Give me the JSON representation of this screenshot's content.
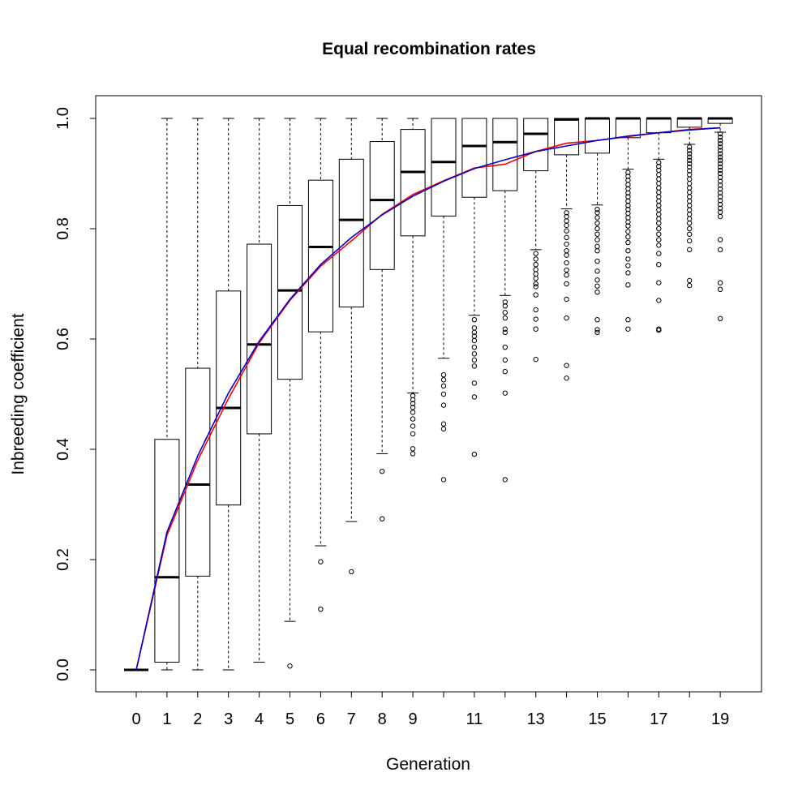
{
  "chart_data": {
    "type": "box",
    "title": "Equal recombination rates",
    "xlabel": "Generation",
    "ylabel": "Inbreeding coefficient",
    "ylim": [
      -0.04,
      1.04
    ],
    "y_ticks": [
      0.0,
      0.2,
      0.4,
      0.6,
      0.8,
      1.0
    ],
    "y_tick_labels": [
      "0.0",
      "0.2",
      "0.4",
      "0.6",
      "0.8",
      "1.0"
    ],
    "categories": [
      "0",
      "1",
      "2",
      "3",
      "4",
      "5",
      "6",
      "7",
      "8",
      "9",
      "10",
      "11",
      "12",
      "13",
      "14",
      "15",
      "16",
      "17",
      "18",
      "19"
    ],
    "x_tick_labels": [
      "0",
      "1",
      "2",
      "3",
      "4",
      "5",
      "6",
      "7",
      "8",
      "9",
      "",
      "11",
      "",
      "13",
      "",
      "15",
      "",
      "17",
      "",
      "19"
    ],
    "grid": false,
    "boxes": [
      {
        "gen": 0,
        "low": 0.0,
        "q1": 0.0,
        "median": 0.0,
        "q3": 0.0,
        "high": 0.0,
        "outliers": []
      },
      {
        "gen": 1,
        "low": 0.0,
        "q1": 0.014,
        "median": 0.168,
        "q3": 0.418,
        "high": 1.0,
        "outliers": []
      },
      {
        "gen": 2,
        "low": 0.0,
        "q1": 0.17,
        "median": 0.336,
        "q3": 0.547,
        "high": 1.0,
        "outliers": []
      },
      {
        "gen": 3,
        "low": 0.0,
        "q1": 0.299,
        "median": 0.475,
        "q3": 0.687,
        "high": 1.0,
        "outliers": []
      },
      {
        "gen": 4,
        "low": 0.014,
        "q1": 0.428,
        "median": 0.59,
        "q3": 0.772,
        "high": 1.0,
        "outliers": []
      },
      {
        "gen": 5,
        "low": 0.088,
        "q1": 0.527,
        "median": 0.688,
        "q3": 0.842,
        "high": 1.0,
        "outliers": [
          0.007
        ]
      },
      {
        "gen": 6,
        "low": 0.225,
        "q1": 0.613,
        "median": 0.767,
        "q3": 0.888,
        "high": 1.0,
        "outliers": [
          0.196,
          0.11
        ]
      },
      {
        "gen": 7,
        "low": 0.269,
        "q1": 0.658,
        "median": 0.816,
        "q3": 0.926,
        "high": 1.0,
        "outliers": [
          0.178
        ]
      },
      {
        "gen": 8,
        "low": 0.392,
        "q1": 0.726,
        "median": 0.852,
        "q3": 0.958,
        "high": 1.0,
        "outliers": [
          0.36,
          0.274
        ]
      },
      {
        "gen": 9,
        "low": 0.502,
        "q1": 0.787,
        "median": 0.903,
        "q3": 0.98,
        "high": 1.0,
        "outliers": [
          0.497,
          0.49,
          0.483,
          0.476,
          0.467,
          0.455,
          0.442,
          0.428,
          0.401,
          0.392
        ]
      },
      {
        "gen": 10,
        "low": 0.565,
        "q1": 0.823,
        "median": 0.921,
        "q3": 1.0,
        "high": 1.0,
        "outliers": [
          0.535,
          0.526,
          0.515,
          0.5,
          0.48,
          0.446,
          0.437,
          0.345
        ]
      },
      {
        "gen": 11,
        "low": 0.643,
        "q1": 0.857,
        "median": 0.95,
        "q3": 1.0,
        "high": 1.0,
        "outliers": [
          0.635,
          0.62,
          0.612,
          0.605,
          0.597,
          0.585,
          0.573,
          0.562,
          0.551,
          0.52,
          0.495,
          0.391
        ]
      },
      {
        "gen": 12,
        "low": 0.679,
        "q1": 0.869,
        "median": 0.957,
        "q3": 1.0,
        "high": 1.0,
        "outliers": [
          0.667,
          0.66,
          0.648,
          0.638,
          0.618,
          0.612,
          0.585,
          0.562,
          0.541,
          0.502,
          0.345
        ]
      },
      {
        "gen": 13,
        "low": 0.762,
        "q1": 0.905,
        "median": 0.972,
        "q3": 1.0,
        "high": 1.0,
        "outliers": [
          0.755,
          0.745,
          0.735,
          0.726,
          0.718,
          0.71,
          0.7,
          0.695,
          0.68,
          0.653,
          0.636,
          0.618,
          0.563
        ]
      },
      {
        "gen": 14,
        "low": 0.836,
        "q1": 0.934,
        "median": 0.998,
        "q3": 1.0,
        "high": 1.0,
        "outliers": [
          0.829,
          0.822,
          0.814,
          0.806,
          0.796,
          0.784,
          0.772,
          0.76,
          0.752,
          0.738,
          0.725,
          0.716,
          0.7,
          0.672,
          0.638,
          0.552,
          0.529
        ]
      },
      {
        "gen": 15,
        "low": 0.843,
        "q1": 0.937,
        "median": 1.0,
        "q3": 1.0,
        "high": 1.0,
        "outliers": [
          0.835,
          0.829,
          0.82,
          0.81,
          0.8,
          0.79,
          0.78,
          0.768,
          0.76,
          0.741,
          0.723,
          0.707,
          0.696,
          0.685,
          0.635,
          0.617,
          0.612
        ]
      },
      {
        "gen": 16,
        "low": 0.908,
        "q1": 0.965,
        "median": 1.0,
        "q3": 1.0,
        "high": 1.0,
        "outliers": [
          0.902,
          0.895,
          0.888,
          0.88,
          0.872,
          0.865,
          0.858,
          0.85,
          0.842,
          0.835,
          0.828,
          0.82,
          0.812,
          0.805,
          0.795,
          0.785,
          0.775,
          0.76,
          0.745,
          0.733,
          0.72,
          0.698,
          0.635,
          0.618
        ]
      },
      {
        "gen": 17,
        "low": 0.926,
        "q1": 0.974,
        "median": 1.0,
        "q3": 1.0,
        "high": 1.0,
        "outliers": [
          0.92,
          0.913,
          0.906,
          0.898,
          0.89,
          0.882,
          0.874,
          0.866,
          0.858,
          0.85,
          0.842,
          0.834,
          0.826,
          0.818,
          0.81,
          0.8,
          0.79,
          0.78,
          0.77,
          0.755,
          0.735,
          0.702,
          0.67,
          0.618,
          0.616
        ]
      },
      {
        "gen": 18,
        "low": 0.953,
        "q1": 0.984,
        "median": 1.0,
        "q3": 1.0,
        "high": 1.0,
        "outliers": [
          0.948,
          0.942,
          0.936,
          0.93,
          0.924,
          0.918,
          0.912,
          0.905,
          0.898,
          0.89,
          0.882,
          0.874,
          0.866,
          0.858,
          0.85,
          0.842,
          0.834,
          0.826,
          0.818,
          0.81,
          0.8,
          0.79,
          0.778,
          0.762,
          0.706,
          0.697
        ]
      },
      {
        "gen": 19,
        "low": 0.975,
        "q1": 0.991,
        "median": 1.0,
        "q3": 1.0,
        "high": 1.0,
        "outliers": [
          0.972,
          0.966,
          0.96,
          0.954,
          0.948,
          0.942,
          0.936,
          0.93,
          0.924,
          0.918,
          0.912,
          0.906,
          0.9,
          0.893,
          0.886,
          0.879,
          0.872,
          0.865,
          0.858,
          0.851,
          0.844,
          0.837,
          0.83,
          0.822,
          0.78,
          0.762,
          0.702,
          0.69,
          0.637
        ]
      }
    ],
    "series": [
      {
        "color": "#ff0000",
        "x": [
          0,
          1,
          2,
          3,
          4,
          5,
          6,
          7,
          8,
          9,
          10,
          11,
          12,
          13,
          14,
          15,
          16,
          17,
          18,
          19
        ],
        "values": [
          0.0,
          0.244,
          0.38,
          0.492,
          0.593,
          0.67,
          0.732,
          0.778,
          0.826,
          0.862,
          0.887,
          0.91,
          0.917,
          0.94,
          0.955,
          0.96,
          0.967,
          0.974,
          0.98,
          0.983
        ]
      },
      {
        "color": "#0000cc",
        "x": [
          0,
          1,
          2,
          3,
          4,
          5,
          6,
          7,
          8,
          9,
          10,
          11,
          12,
          13,
          14,
          15,
          16,
          17,
          18,
          19
        ],
        "values": [
          0.0,
          0.25,
          0.388,
          0.502,
          0.596,
          0.672,
          0.735,
          0.784,
          0.825,
          0.859,
          0.886,
          0.909,
          0.925,
          0.94,
          0.95,
          0.96,
          0.968,
          0.974,
          0.979,
          0.983
        ]
      }
    ]
  }
}
